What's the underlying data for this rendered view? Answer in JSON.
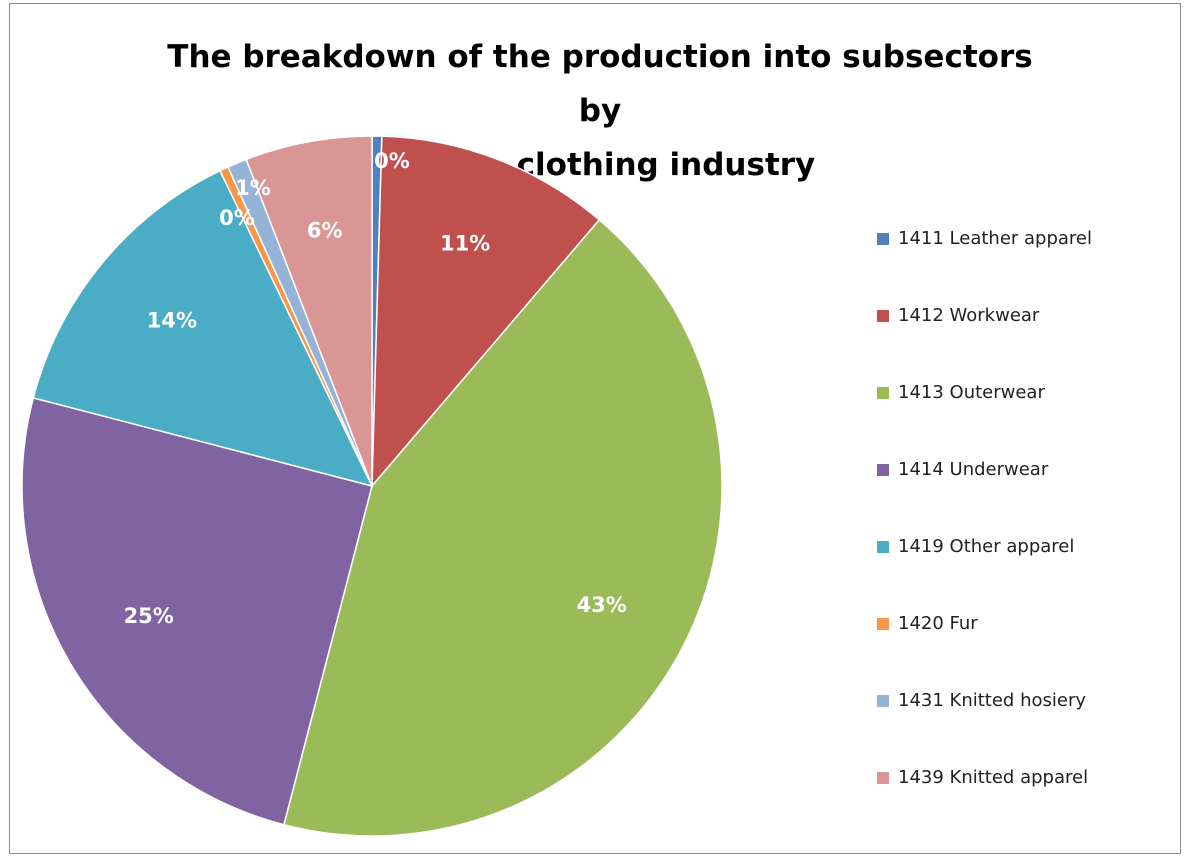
{
  "chart_data": {
    "type": "pie",
    "title": "The breakdown of the production into subsectors by\nvalue – clothing industry",
    "legend_position": "right",
    "slices": [
      {
        "name": "1411 Leather apparel",
        "value": 0.45,
        "label": "0%",
        "color": "#4f81bd"
      },
      {
        "name": "1412 Workwear",
        "value": 10.8,
        "label": "11%",
        "color": "#c0504d"
      },
      {
        "name": "1413 Outerwear",
        "value": 42.8,
        "label": "43%",
        "color": "#9bbb59"
      },
      {
        "name": "1414 Underwear",
        "value": 25.0,
        "label": "25%",
        "color": "#8064a2"
      },
      {
        "name": "1419 Other apparel",
        "value": 13.8,
        "label": "14%",
        "color": "#4bacc6"
      },
      {
        "name": "1420 Fur",
        "value": 0.4,
        "label": "0%",
        "color": "#f79646"
      },
      {
        "name": "1431 Knitted hosiery",
        "value": 0.9,
        "label": "1%",
        "color": "#95b3d7"
      },
      {
        "name": "1439 Knitted apparel",
        "value": 5.85,
        "label": "6%",
        "color": "#d99694"
      }
    ]
  }
}
